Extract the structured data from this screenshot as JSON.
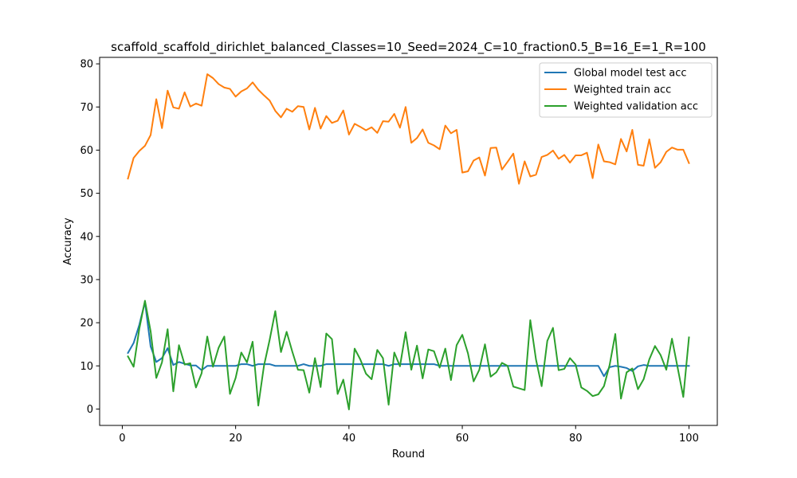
{
  "chart_data": {
    "type": "line",
    "title": "scaffold_scaffold_dirichlet_balanced_Classes=10_Seed=2024_C=10_fraction0.5_B=16_E=1_R=100",
    "xlabel": "Round",
    "ylabel": "Accuracy",
    "xlim": [
      -4,
      105
    ],
    "ylim": [
      -3.8,
      81.5
    ],
    "xticks": [
      0,
      20,
      40,
      60,
      80,
      100
    ],
    "yticks": [
      0,
      10,
      20,
      30,
      40,
      50,
      60,
      70,
      80
    ],
    "legend_position": "top-right",
    "grid": false,
    "x_start": 1,
    "series": [
      {
        "name": "Global model test acc",
        "color": "#1f77b4",
        "values": [
          13.0,
          15.3,
          19.5,
          24.8,
          14.5,
          10.9,
          11.8,
          14.1,
          10.2,
          10.9,
          10.5,
          10.1,
          10.1,
          9.0,
          10.0,
          10.0,
          10.0,
          10.0,
          10.0,
          10.0,
          10.4,
          10.4,
          10.0,
          10.4,
          10.4,
          10.4,
          10.0,
          10.0,
          10.0,
          10.0,
          10.0,
          10.4,
          10.0,
          10.0,
          10.0,
          10.4,
          10.4,
          10.4,
          10.4,
          10.4,
          10.4,
          10.4,
          10.4,
          10.4,
          10.4,
          10.4,
          10.0,
          10.4,
          10.4,
          10.4,
          10.4,
          10.4,
          10.4,
          10.4,
          10.4,
          10.0,
          10.0,
          10.0,
          10.0,
          10.0,
          10.0,
          10.0,
          10.0,
          10.0,
          10.0,
          10.0,
          10.0,
          10.0,
          10.0,
          10.0,
          10.0,
          10.0,
          10.0,
          10.0,
          10.0,
          10.0,
          10.0,
          10.0,
          10.0,
          10.0,
          10.0,
          10.0,
          10.0,
          10.0,
          7.6,
          9.7,
          10.0,
          9.8,
          9.5,
          8.8,
          9.9,
          10.2,
          10.0,
          10.0,
          10.0,
          10.0,
          10.0,
          10.0,
          10.0,
          10.0
        ]
      },
      {
        "name": "Weighted train acc",
        "color": "#ff7f0e",
        "values": [
          53.4,
          58.2,
          59.8,
          61.0,
          63.5,
          71.8,
          65.1,
          73.8,
          69.9,
          69.6,
          73.4,
          70.1,
          70.8,
          70.3,
          77.6,
          76.7,
          75.3,
          74.5,
          74.2,
          72.4,
          73.6,
          74.3,
          75.7,
          74.0,
          72.7,
          71.5,
          69.1,
          67.6,
          69.6,
          68.9,
          70.2,
          70.0,
          64.8,
          69.8,
          65.0,
          67.9,
          66.3,
          66.8,
          69.2,
          63.6,
          66.1,
          65.4,
          64.6,
          65.3,
          64.0,
          66.7,
          66.6,
          68.4,
          65.2,
          70.0,
          61.7,
          62.8,
          64.8,
          61.7,
          61.1,
          60.2,
          65.7,
          63.9,
          64.7,
          54.8,
          55.1,
          57.6,
          58.3,
          54.1,
          60.5,
          60.6,
          55.5,
          57.3,
          59.2,
          52.2,
          57.4,
          53.9,
          54.3,
          58.4,
          58.9,
          59.9,
          58.0,
          58.9,
          57.1,
          58.8,
          58.8,
          59.4,
          53.5,
          61.3,
          57.4,
          57.2,
          56.7,
          62.6,
          59.7,
          64.7,
          56.6,
          56.4,
          62.5,
          55.9,
          57.2,
          59.6,
          60.6,
          60.1,
          60.1,
          57.0
        ]
      },
      {
        "name": "Weighted validation acc",
        "color": "#2ca02c",
        "values": [
          12.2,
          9.8,
          18.6,
          25.1,
          18.0,
          7.2,
          10.8,
          18.5,
          4.1,
          14.8,
          10.3,
          10.6,
          5.0,
          8.3,
          16.8,
          9.8,
          14.2,
          16.8,
          3.5,
          7.2,
          13.1,
          10.8,
          15.6,
          0.8,
          10.0,
          16.0,
          22.7,
          13.2,
          17.9,
          13.3,
          9.1,
          9.0,
          3.8,
          11.8,
          5.1,
          17.5,
          16.2,
          3.5,
          6.8,
          -0.1,
          14.0,
          11.5,
          8.2,
          6.9,
          13.7,
          11.8,
          1.0,
          13.1,
          9.9,
          17.8,
          9.1,
          14.7,
          7.1,
          13.8,
          13.4,
          9.6,
          14.0,
          6.7,
          14.8,
          17.2,
          12.9,
          6.4,
          9.1,
          15.0,
          7.5,
          8.5,
          10.7,
          10.0,
          5.2,
          4.8,
          4.4,
          20.6,
          11.5,
          5.3,
          15.8,
          18.8,
          9.0,
          9.3,
          11.8,
          10.3,
          5.0,
          4.2,
          3.0,
          3.4,
          5.3,
          10.2,
          17.4,
          2.4,
          8.5,
          9.4,
          4.6,
          6.9,
          11.5,
          14.6,
          12.5,
          9.1,
          16.3,
          9.6,
          2.8,
          16.6
        ]
      }
    ]
  }
}
